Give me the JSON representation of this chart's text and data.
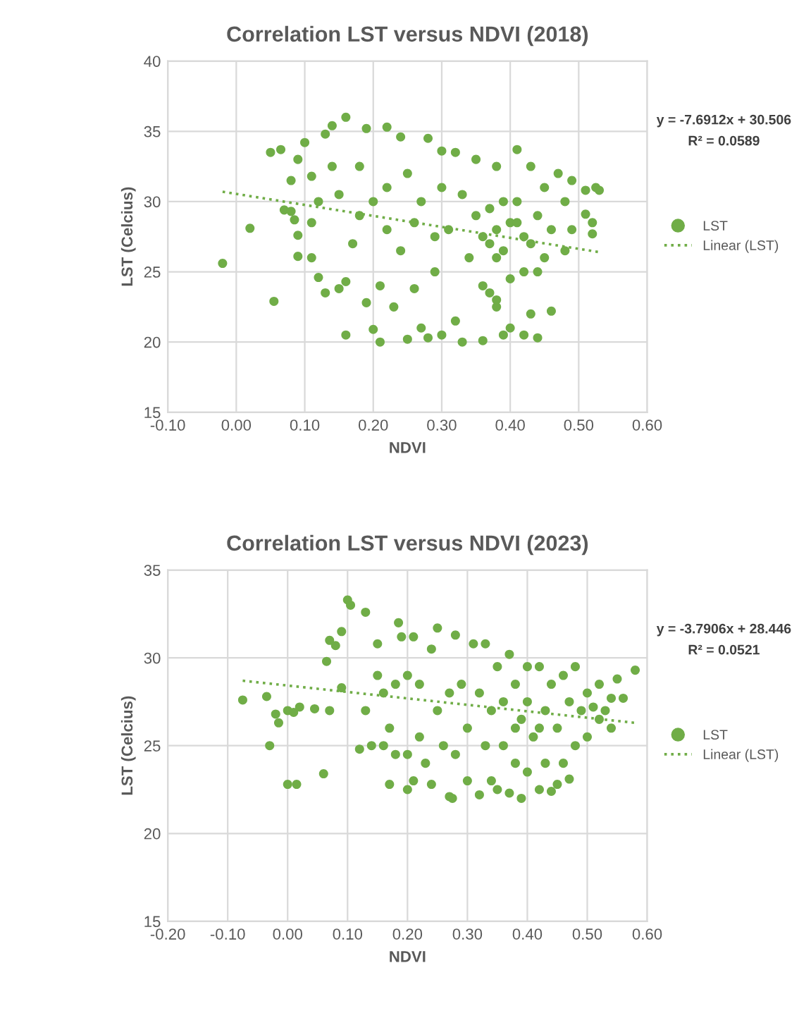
{
  "chart_data": [
    {
      "type": "scatter",
      "title": "Correlation LST versus NDVI (2018)",
      "xlabel": "NDVI",
      "ylabel": "LST (Celcius)",
      "annotations": [
        "y = -7.6912x + 30.506",
        "R² = 0.0589"
      ],
      "xlim": [
        -0.1,
        0.6
      ],
      "ylim": [
        15,
        40
      ],
      "xticks": [
        {
          "value": -0.1,
          "label": "-0.10"
        },
        {
          "value": 0,
          "label": "0.00"
        },
        {
          "value": 0.1,
          "label": "0.10"
        },
        {
          "value": 0.2,
          "label": "0.20"
        },
        {
          "value": 0.3,
          "label": "0.30"
        },
        {
          "value": 0.4,
          "label": "0.40"
        },
        {
          "value": 0.5,
          "label": "0.50"
        },
        {
          "value": 0.6,
          "label": "0.60"
        }
      ],
      "yticks": [
        15,
        20,
        25,
        30,
        35,
        40
      ],
      "grid": true,
      "legend": "right",
      "series": [
        {
          "name": "LST",
          "marker": "circle",
          "color": "#70ad47",
          "x": [
            -0.02,
            0.02,
            0.05,
            0.055,
            0.065,
            0.07,
            0.08,
            0.08,
            0.085,
            0.09,
            0.09,
            0.09,
            0.1,
            0.11,
            0.11,
            0.12,
            0.13,
            0.13,
            0.14,
            0.15,
            0.16,
            0.16,
            0.16,
            0.15,
            0.17,
            0.18,
            0.19,
            0.19,
            0.2,
            0.21,
            0.21,
            0.22,
            0.22,
            0.23,
            0.24,
            0.24,
            0.25,
            0.26,
            0.27,
            0.28,
            0.28,
            0.29,
            0.3,
            0.3,
            0.31,
            0.32,
            0.32,
            0.33,
            0.34,
            0.35,
            0.36,
            0.36,
            0.37,
            0.37,
            0.38,
            0.38,
            0.39,
            0.39,
            0.4,
            0.4,
            0.4,
            0.41,
            0.41,
            0.42,
            0.42,
            0.42,
            0.43,
            0.43,
            0.44,
            0.44,
            0.45,
            0.45,
            0.46,
            0.46,
            0.47,
            0.48,
            0.48,
            0.49,
            0.49,
            0.51,
            0.51,
            0.52,
            0.52,
            0.525,
            0.53,
            0.35,
            0.36,
            0.38,
            0.38,
            0.39,
            0.41,
            0.43,
            0.44,
            0.37,
            0.38,
            0.33,
            0.27,
            0.26,
            0.22,
            0.2,
            0.18,
            0.14,
            0.12,
            0.11,
            0.25,
            0.3,
            0.29
          ],
          "values": [
            25.6,
            28.1,
            33.5,
            22.9,
            33.7,
            29.4,
            29.3,
            31.5,
            28.7,
            33.0,
            26.1,
            27.6,
            34.2,
            26.0,
            31.8,
            24.6,
            23.5,
            34.8,
            35.4,
            30.5,
            36.0,
            24.3,
            20.5,
            23.8,
            27.0,
            32.5,
            22.8,
            35.2,
            20.9,
            20.0,
            24.0,
            35.3,
            28.0,
            22.5,
            34.6,
            26.5,
            20.2,
            23.8,
            21.0,
            34.5,
            20.3,
            25.0,
            33.6,
            20.5,
            28.0,
            21.5,
            33.5,
            20.0,
            26.0,
            33.0,
            20.1,
            24.0,
            29.5,
            27.0,
            22.5,
            32.5,
            20.5,
            26.5,
            28.5,
            24.5,
            21.0,
            33.7,
            30.0,
            27.5,
            25.0,
            20.5,
            32.5,
            22.0,
            20.3,
            29.0,
            31.0,
            26.0,
            22.2,
            28.0,
            32.0,
            30.0,
            26.5,
            31.5,
            28.0,
            30.8,
            29.1,
            28.5,
            27.7,
            31.0,
            30.8,
            29.0,
            27.5,
            28.0,
            26.0,
            30.0,
            28.5,
            27.0,
            25.0,
            23.5,
            23.0,
            30.5,
            30.0,
            28.5,
            31.0,
            30.0,
            29.0,
            32.5,
            30.0,
            28.5,
            32.0,
            31.0,
            27.5
          ]
        },
        {
          "name": "Linear (LST)",
          "type": "line",
          "line_style": "dotted",
          "color": "#70ad47",
          "x": [
            -0.02,
            0.53
          ],
          "values": [
            30.7,
            26.4
          ]
        }
      ]
    },
    {
      "type": "scatter",
      "title": "Correlation LST versus NDVI (2023)",
      "xlabel": "NDVI",
      "ylabel": "LST (Celcius)",
      "annotations": [
        "y = -3.7906x + 28.446",
        "R² = 0.0521"
      ],
      "xlim": [
        -0.2,
        0.6
      ],
      "ylim": [
        15,
        35
      ],
      "xticks": [
        {
          "value": -0.2,
          "label": "-0.20"
        },
        {
          "value": -0.1,
          "label": "-0.10"
        },
        {
          "value": 0,
          "label": "0.00"
        },
        {
          "value": 0.1,
          "label": "0.10"
        },
        {
          "value": 0.2,
          "label": "0.20"
        },
        {
          "value": 0.3,
          "label": "0.30"
        },
        {
          "value": 0.4,
          "label": "0.40"
        },
        {
          "value": 0.5,
          "label": "0.50"
        },
        {
          "value": 0.6,
          "label": "0.60"
        }
      ],
      "yticks": [
        15,
        20,
        25,
        30,
        35
      ],
      "grid": true,
      "legend": "right",
      "series": [
        {
          "name": "LST",
          "marker": "circle",
          "color": "#70ad47",
          "x": [
            -0.075,
            -0.035,
            -0.02,
            -0.015,
            -0.03,
            0.0,
            0.01,
            0.02,
            0.045,
            0.07,
            0.0,
            0.015,
            0.06,
            0.07,
            0.08,
            0.065,
            0.09,
            0.09,
            0.1,
            0.105,
            0.13,
            0.12,
            0.14,
            0.13,
            0.15,
            0.15,
            0.16,
            0.17,
            0.17,
            0.18,
            0.185,
            0.19,
            0.2,
            0.2,
            0.21,
            0.21,
            0.22,
            0.22,
            0.23,
            0.24,
            0.24,
            0.25,
            0.25,
            0.26,
            0.27,
            0.275,
            0.28,
            0.28,
            0.29,
            0.3,
            0.3,
            0.31,
            0.32,
            0.32,
            0.33,
            0.33,
            0.34,
            0.35,
            0.35,
            0.36,
            0.36,
            0.37,
            0.37,
            0.38,
            0.38,
            0.39,
            0.39,
            0.4,
            0.4,
            0.4,
            0.41,
            0.42,
            0.42,
            0.43,
            0.43,
            0.44,
            0.44,
            0.45,
            0.45,
            0.46,
            0.46,
            0.47,
            0.47,
            0.48,
            0.48,
            0.49,
            0.5,
            0.5,
            0.51,
            0.52,
            0.52,
            0.53,
            0.54,
            0.54,
            0.55,
            0.56,
            0.58,
            0.18,
            0.2,
            0.16,
            0.27,
            0.34,
            0.38,
            0.42
          ],
          "values": [
            27.6,
            27.8,
            26.8,
            26.3,
            25.0,
            27.0,
            26.9,
            27.2,
            27.1,
            27.0,
            22.8,
            22.8,
            23.4,
            31.0,
            30.7,
            29.8,
            31.5,
            28.3,
            33.3,
            33.0,
            32.6,
            24.8,
            25.0,
            27.0,
            29.0,
            30.8,
            25.0,
            22.8,
            26.0,
            24.5,
            32.0,
            31.2,
            22.5,
            24.5,
            23.0,
            31.2,
            25.5,
            28.5,
            24.0,
            30.5,
            22.8,
            31.7,
            27.0,
            25.0,
            22.1,
            22.0,
            31.3,
            24.5,
            28.5,
            23.0,
            26.0,
            30.8,
            22.2,
            28.0,
            30.8,
            25.0,
            23.0,
            29.5,
            22.5,
            27.5,
            25.0,
            30.2,
            22.3,
            28.5,
            24.0,
            22.0,
            26.5,
            29.5,
            27.5,
            23.5,
            25.5,
            29.5,
            22.5,
            27.0,
            24.0,
            22.4,
            28.5,
            26.0,
            22.8,
            29.0,
            24.0,
            27.5,
            23.1,
            29.5,
            25.0,
            27.0,
            28.0,
            25.5,
            27.2,
            26.5,
            28.5,
            27.0,
            26.0,
            27.7,
            28.8,
            27.7,
            29.3,
            28.5,
            29.0,
            28.0,
            28.0,
            27.0,
            26.0,
            26.0
          ]
        },
        {
          "name": "Linear (LST)",
          "type": "line",
          "line_style": "dotted",
          "color": "#70ad47",
          "x": [
            -0.075,
            0.58
          ],
          "values": [
            28.7,
            26.3
          ]
        }
      ]
    }
  ]
}
